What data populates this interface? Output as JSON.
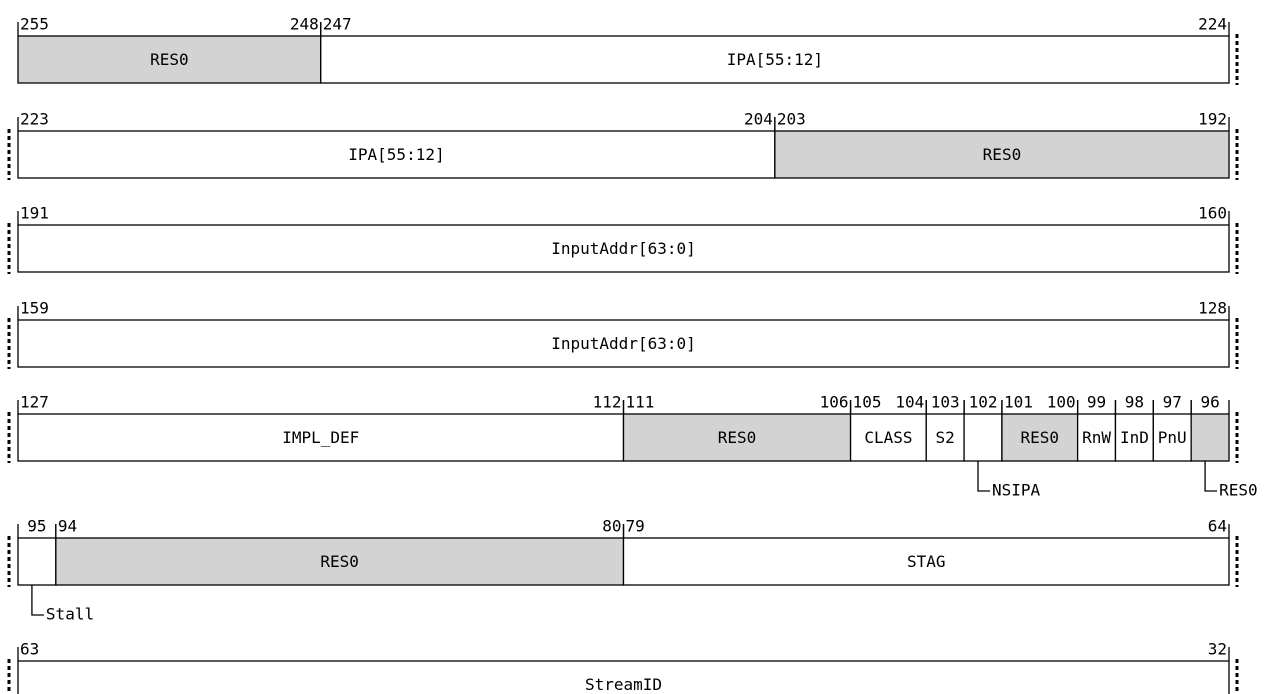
{
  "rows": [
    {
      "fields": [
        {
          "msb": 255,
          "lsb": 248,
          "name": "RES0",
          "shaded": true
        },
        {
          "msb": 247,
          "lsb": 224,
          "name": "IPA[55:12]"
        }
      ]
    },
    {
      "fields": [
        {
          "msb": 223,
          "lsb": 204,
          "name": "IPA[55:12]"
        },
        {
          "msb": 203,
          "lsb": 192,
          "name": "RES0",
          "shaded": true
        }
      ]
    },
    {
      "fields": [
        {
          "msb": 191,
          "lsb": 160,
          "name": "InputAddr[63:0]"
        }
      ]
    },
    {
      "fields": [
        {
          "msb": 159,
          "lsb": 128,
          "name": "InputAddr[63:0]"
        }
      ]
    },
    {
      "fields": [
        {
          "msb": 127,
          "lsb": 112,
          "name": "IMPL_DEF"
        },
        {
          "msb": 111,
          "lsb": 106,
          "name": "RES0",
          "shaded": true
        },
        {
          "msb": 105,
          "lsb": 104,
          "name": "CLASS"
        },
        {
          "bit": 103,
          "name": "S2"
        },
        {
          "bit": 102,
          "name": "NSIPA",
          "callout": true
        },
        {
          "msb": 101,
          "lsb": 100,
          "name": "RES0",
          "shaded": true
        },
        {
          "bit": 99,
          "name": "RnW"
        },
        {
          "bit": 98,
          "name": "InD"
        },
        {
          "bit": 97,
          "name": "PnU"
        },
        {
          "bit": 96,
          "name": "RES0",
          "shaded": true,
          "callout": true
        }
      ]
    },
    {
      "fields": [
        {
          "bit": 95,
          "name": "Stall",
          "callout": true
        },
        {
          "msb": 94,
          "lsb": 80,
          "name": "RES0",
          "shaded": true
        },
        {
          "msb": 79,
          "lsb": 64,
          "name": "STAG"
        }
      ]
    },
    {
      "fields": [
        {
          "msb": 63,
          "lsb": 32,
          "name": "StreamID"
        }
      ]
    }
  ]
}
